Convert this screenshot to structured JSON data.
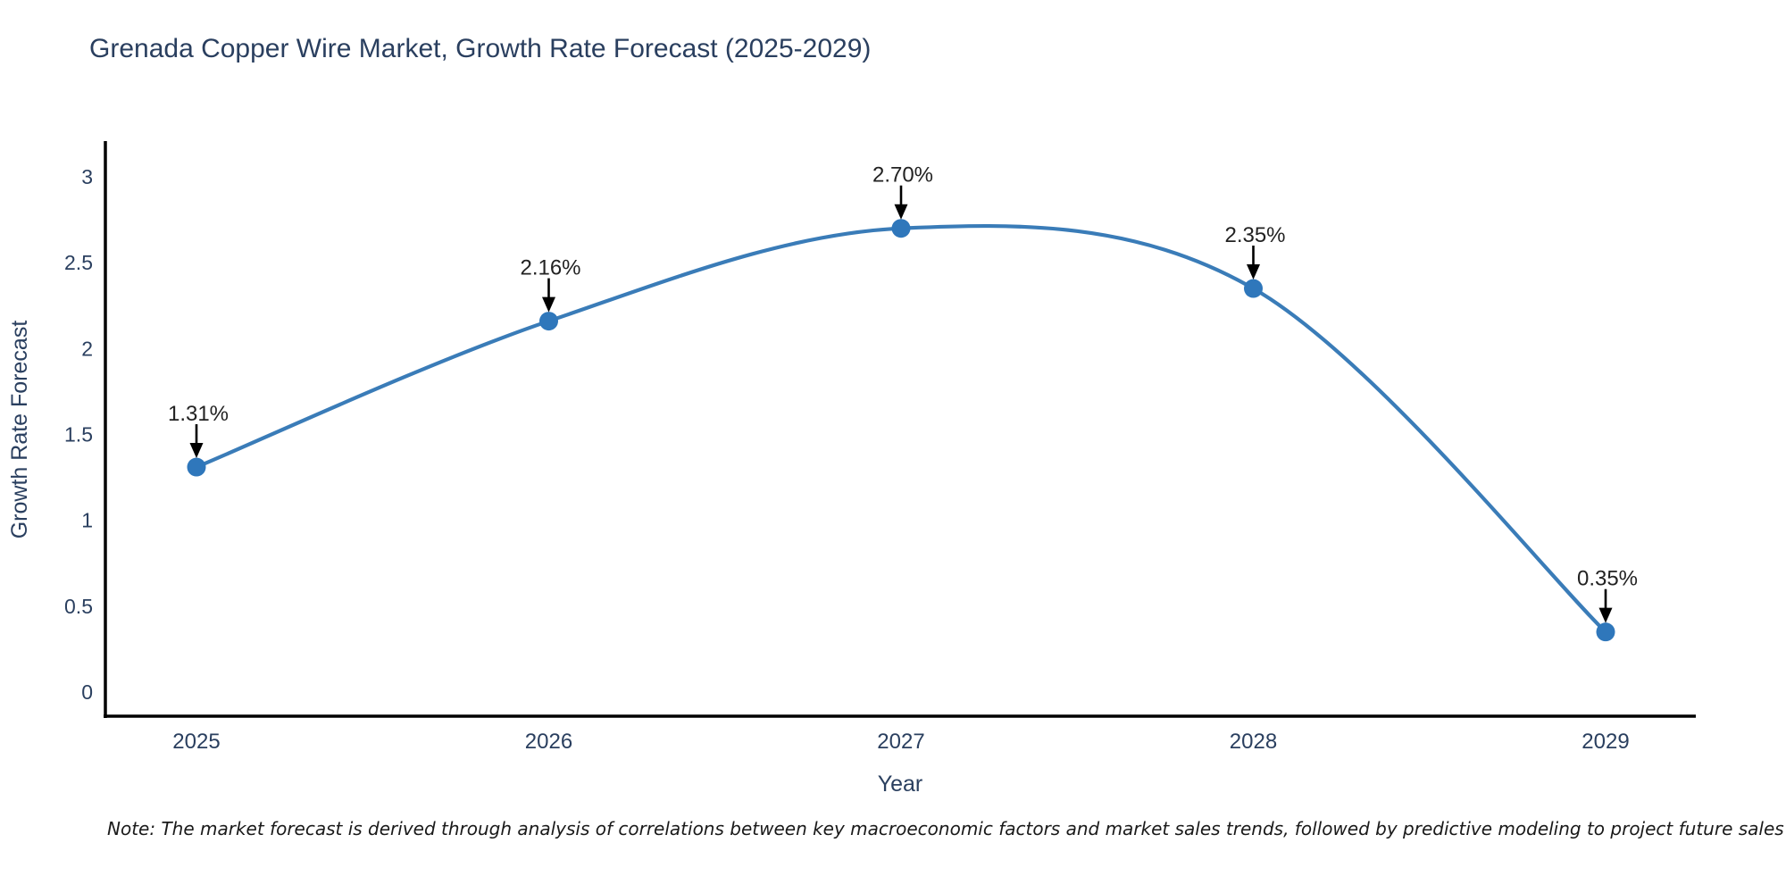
{
  "title": "Grenada Copper Wire Market, Growth Rate Forecast (2025-2029)",
  "note": "Note: The market forecast is derived through analysis of correlations between key macroeconomic factors and market sales trends, followed by predictive modeling to project future sales",
  "chart_data": {
    "type": "line",
    "title": "Grenada Copper Wire Market, Growth Rate Forecast (2025-2029)",
    "xlabel": "Year",
    "ylabel": "Growth Rate Forecast",
    "categories": [
      "2025",
      "2026",
      "2027",
      "2028",
      "2029"
    ],
    "values": [
      1.31,
      2.16,
      2.7,
      2.35,
      0.35
    ],
    "point_labels": [
      "1.31%",
      "2.16%",
      "2.70%",
      "2.35%",
      "0.35%"
    ],
    "y_ticks": [
      "0",
      "0.5",
      "1",
      "1.5",
      "2",
      "2.5",
      "3"
    ],
    "y_tick_values": [
      0,
      0.5,
      1,
      1.5,
      2,
      2.5,
      3
    ],
    "ylim": [
      -0.15,
      3.2
    ],
    "line_shape": "spline",
    "grid": false,
    "legend_position": "none",
    "colors": {
      "line": "#3a7cb8",
      "marker": "#2f77bb",
      "axis": "#000000",
      "tick_text": "#2a3f5f",
      "axis_title_text": "#2a3f5f",
      "annotation_text": "#222222",
      "annotation_arrow": "#000000",
      "title_text": "#2a3f5f",
      "background": "#ffffff"
    }
  }
}
